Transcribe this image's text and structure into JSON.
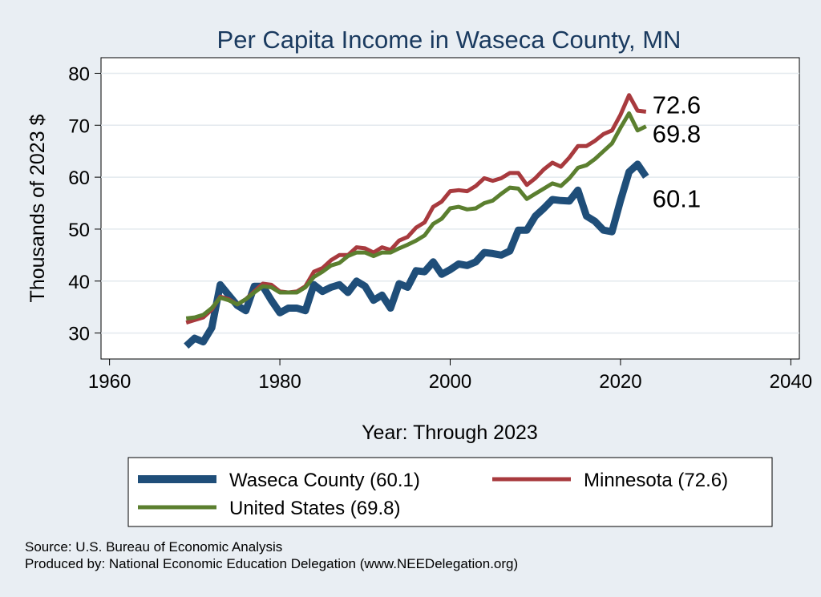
{
  "chart_data": {
    "type": "line",
    "title": "Per Capita Income in Waseca County, MN",
    "xlabel": "Year: Through 2023",
    "ylabel": "Thousands of 2023 $",
    "xlim": [
      1959,
      2041
    ],
    "ylim": [
      25,
      83
    ],
    "xticks": [
      1960,
      1980,
      2000,
      2020,
      2040
    ],
    "yticks": [
      30,
      40,
      50,
      60,
      70,
      80
    ],
    "grid": true,
    "legend_position": "bottom",
    "x": [
      1969,
      1970,
      1971,
      1972,
      1973,
      1974,
      1975,
      1976,
      1977,
      1978,
      1979,
      1980,
      1981,
      1982,
      1983,
      1984,
      1985,
      1986,
      1987,
      1988,
      1989,
      1990,
      1991,
      1992,
      1993,
      1994,
      1995,
      1996,
      1997,
      1998,
      1999,
      2000,
      2001,
      2002,
      2003,
      2004,
      2005,
      2006,
      2007,
      2008,
      2009,
      2010,
      2011,
      2012,
      2013,
      2014,
      2015,
      2016,
      2017,
      2018,
      2019,
      2020,
      2021,
      2022,
      2023
    ],
    "series": [
      {
        "name": "Waseca County (60.1)",
        "color": "#1f4e79",
        "end_label": "60.1",
        "values": [
          27.5,
          29.0,
          28.3,
          31.0,
          39.3,
          37.3,
          35.3,
          34.3,
          39.0,
          39.0,
          36.3,
          33.9,
          34.8,
          34.8,
          34.3,
          39.3,
          38.0,
          38.8,
          39.3,
          37.8,
          40.0,
          39.0,
          36.3,
          37.3,
          34.8,
          39.5,
          38.8,
          42.0,
          41.8,
          43.7,
          41.3,
          42.2,
          43.3,
          43.0,
          43.7,
          45.5,
          45.3,
          45.0,
          45.8,
          49.8,
          49.8,
          52.5,
          54.0,
          55.7,
          55.5,
          55.4,
          57.5,
          52.5,
          51.5,
          49.8,
          49.5,
          55.5,
          61.0,
          62.5,
          60.1
        ]
      },
      {
        "name": "Minnesota (72.6)",
        "color": "#a83a3e",
        "end_label": "72.6",
        "values": [
          32.0,
          32.5,
          33.0,
          34.5,
          37.0,
          36.5,
          35.5,
          36.5,
          38.0,
          39.5,
          39.3,
          38.0,
          37.8,
          38.0,
          39.0,
          41.8,
          42.5,
          44.0,
          45.0,
          45.0,
          46.5,
          46.3,
          45.5,
          46.5,
          46.0,
          47.8,
          48.5,
          50.3,
          51.3,
          54.3,
          55.3,
          57.3,
          57.5,
          57.3,
          58.3,
          59.8,
          59.3,
          59.8,
          60.8,
          60.8,
          58.5,
          59.8,
          61.5,
          62.8,
          62.0,
          63.8,
          66.0,
          66.0,
          67.0,
          68.3,
          69.0,
          72.0,
          75.8,
          72.8,
          72.6
        ]
      },
      {
        "name": "United States (69.8)",
        "color": "#5b7f2f",
        "end_label": "69.8",
        "values": [
          32.8,
          33.0,
          33.5,
          34.8,
          36.8,
          36.3,
          35.5,
          36.5,
          37.8,
          39.0,
          38.8,
          37.8,
          37.8,
          37.8,
          38.8,
          40.8,
          41.8,
          43.0,
          43.5,
          44.8,
          45.5,
          45.5,
          44.8,
          45.5,
          45.5,
          46.3,
          47.0,
          47.8,
          48.8,
          51.0,
          52.0,
          54.0,
          54.3,
          53.8,
          54.0,
          55.0,
          55.5,
          56.8,
          58.0,
          57.8,
          55.8,
          56.8,
          57.8,
          58.8,
          58.3,
          59.8,
          61.8,
          62.3,
          63.5,
          65.0,
          66.5,
          69.5,
          72.3,
          69.0,
          69.8
        ]
      }
    ]
  },
  "legend": {
    "items": [
      {
        "label": "Waseca County (60.1)",
        "color": "#1f4e79",
        "width": 10
      },
      {
        "label": "Minnesota (72.6)",
        "color": "#a83a3e",
        "width": 5
      },
      {
        "label": "United States (69.8)",
        "color": "#5b7f2f",
        "width": 5
      }
    ]
  },
  "notes": {
    "source": "Source: U.S. Bureau of Economic Analysis",
    "produced_by": "Produced by: National Economic Education Delegation (www.NEEDelegation.org)"
  }
}
